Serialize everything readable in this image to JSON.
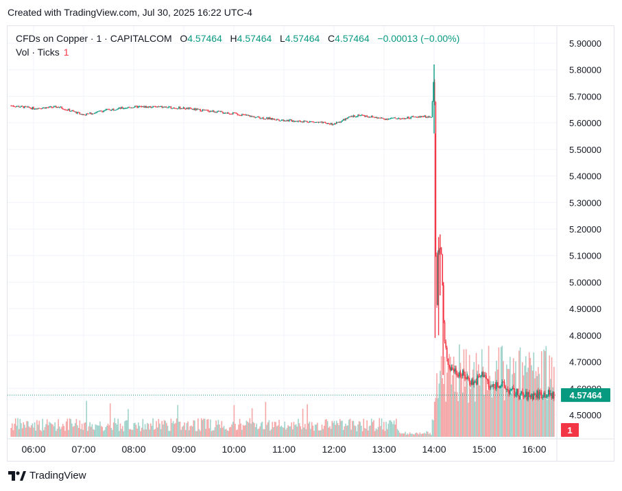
{
  "header": {
    "created": "Created with TradingView.com, Jul 30, 2025 16:22 UTC-4"
  },
  "legend": {
    "symbol": "CFDs on Copper · 1 · CAPITALCOM",
    "o_label": "O",
    "o": "4.57464",
    "h_label": "H",
    "h": "4.57464",
    "l_label": "L",
    "l": "4.57464",
    "c_label": "C",
    "c": "4.57464",
    "change": "−0.00013 (−0.00%)",
    "vol_label": "Vol · Ticks",
    "vol_value": "1"
  },
  "colors": {
    "up": "#089981",
    "down": "#f23645",
    "vol_up": "#9fd3cb",
    "vol_down": "#f5a6a6",
    "grid": "#f0f3fa"
  },
  "chart_data": {
    "type": "candlestick",
    "y_ticks": [
      "5.90000",
      "5.80000",
      "5.70000",
      "5.60000",
      "5.50000",
      "5.40000",
      "5.30000",
      "5.20000",
      "5.10000",
      "5.00000",
      "4.90000",
      "4.80000",
      "4.70000",
      "4.60000",
      "4.50000"
    ],
    "ylim": [
      4.43,
      5.93
    ],
    "x_ticks": [
      "06:00",
      "07:00",
      "08:00",
      "09:00",
      "10:00",
      "11:00",
      "12:00",
      "13:00",
      "14:00",
      "15:00",
      "16:00"
    ],
    "x_range_hours": [
      5.55,
      16.4
    ],
    "price_path": [
      [
        5.55,
        5.665
      ],
      [
        6.0,
        5.655
      ],
      [
        6.5,
        5.66
      ],
      [
        7.0,
        5.63
      ],
      [
        7.5,
        5.65
      ],
      [
        8.0,
        5.66
      ],
      [
        8.5,
        5.66
      ],
      [
        9.0,
        5.655
      ],
      [
        9.5,
        5.645
      ],
      [
        10.0,
        5.635
      ],
      [
        10.5,
        5.62
      ],
      [
        11.0,
        5.61
      ],
      [
        11.5,
        5.605
      ],
      [
        12.0,
        5.595
      ],
      [
        12.3,
        5.62
      ],
      [
        12.5,
        5.63
      ],
      [
        13.0,
        5.615
      ],
      [
        13.5,
        5.62
      ],
      [
        13.95,
        5.625
      ],
      [
        14.0,
        5.8
      ],
      [
        14.02,
        5.56
      ],
      [
        14.04,
        4.8
      ],
      [
        14.08,
        5.15
      ],
      [
        14.15,
        5.1
      ],
      [
        14.2,
        4.78
      ],
      [
        14.3,
        4.68
      ],
      [
        14.5,
        4.66
      ],
      [
        14.8,
        4.62
      ],
      [
        15.0,
        4.66
      ],
      [
        15.1,
        4.6
      ],
      [
        15.3,
        4.62
      ],
      [
        15.5,
        4.59
      ],
      [
        15.8,
        4.57
      ],
      [
        16.0,
        4.575
      ],
      [
        16.2,
        4.58
      ],
      [
        16.35,
        4.5746
      ]
    ],
    "last_price": "4.57464",
    "volume_scale": "Ticks",
    "last_volume": "1"
  }
}
